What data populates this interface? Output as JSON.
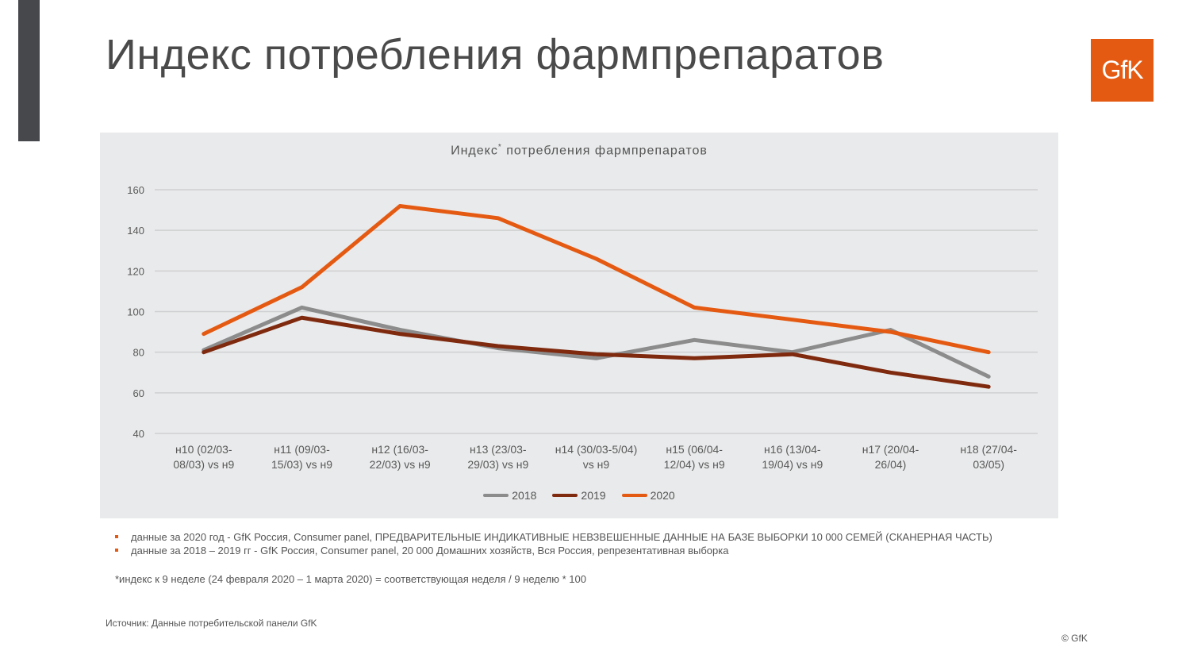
{
  "page": {
    "title": "Индекс потребления фармпрепаратов",
    "logo_text": "GfK",
    "source": "Источник: Данные потребительской панели GfK",
    "copyright": "© GfK"
  },
  "notes": [
    "данные за 2020 год - GfK Россия, Consumer panel, ПРЕДВАРИТЕЛЬНЫЕ ИНДИКАТИВНЫЕ НЕВЗВЕШЕННЫЕ ДАННЫЕ НА БАЗЕ ВЫБОРКИ 10 000 СЕМЕЙ (СКАНЕРНАЯ ЧАСТЬ)",
    "данные за 2018 – 2019 гг - GfK Россия, Consumer panel, 20 000 Домашних хозяйств, Вся Россия, репрезентативная выборка"
  ],
  "footnote": "*индекс к 9 неделе (24 февраля 2020 – 1 марта 2020)  = соответствующая неделя / 9 неделю * 100",
  "colors": {
    "accent": "#e55a12",
    "sidebar": "#46484b",
    "panel_bg": "#e9eaeb"
  },
  "chart_data": {
    "type": "line",
    "title_main": "Индекс",
    "title_sup": "*",
    "title_rest": " потребления фармпрепаратов",
    "categories": [
      [
        "н10 (02/03-",
        "08/03) vs н9"
      ],
      [
        "н11 (09/03-",
        "15/03) vs н9"
      ],
      [
        "н12 (16/03-",
        "22/03) vs н9"
      ],
      [
        "н13 (23/03-",
        "29/03) vs н9"
      ],
      [
        "н14 (30/03-5/04)",
        "vs н9"
      ],
      [
        "н15 (06/04-",
        "12/04) vs н9"
      ],
      [
        "н16 (13/04-",
        "19/04) vs н9"
      ],
      [
        "н17 (20/04-",
        "26/04)"
      ],
      [
        "н18 (27/04-",
        "03/05)"
      ]
    ],
    "ylim": [
      40,
      160
    ],
    "yticks": [
      40,
      60,
      80,
      100,
      120,
      140,
      160
    ],
    "grid": true,
    "legend_position": "bottom",
    "series": [
      {
        "name": "2018",
        "color": "#8c8c8c",
        "values": [
          81,
          102,
          91,
          82,
          77,
          86,
          80,
          91,
          68
        ]
      },
      {
        "name": "2019",
        "color": "#7f2a0f",
        "values": [
          80,
          97,
          89,
          83,
          79,
          77,
          79,
          70,
          63
        ]
      },
      {
        "name": "2020",
        "color": "#e55a12",
        "values": [
          89,
          112,
          152,
          146,
          126,
          102,
          96,
          90,
          80
        ]
      }
    ]
  }
}
